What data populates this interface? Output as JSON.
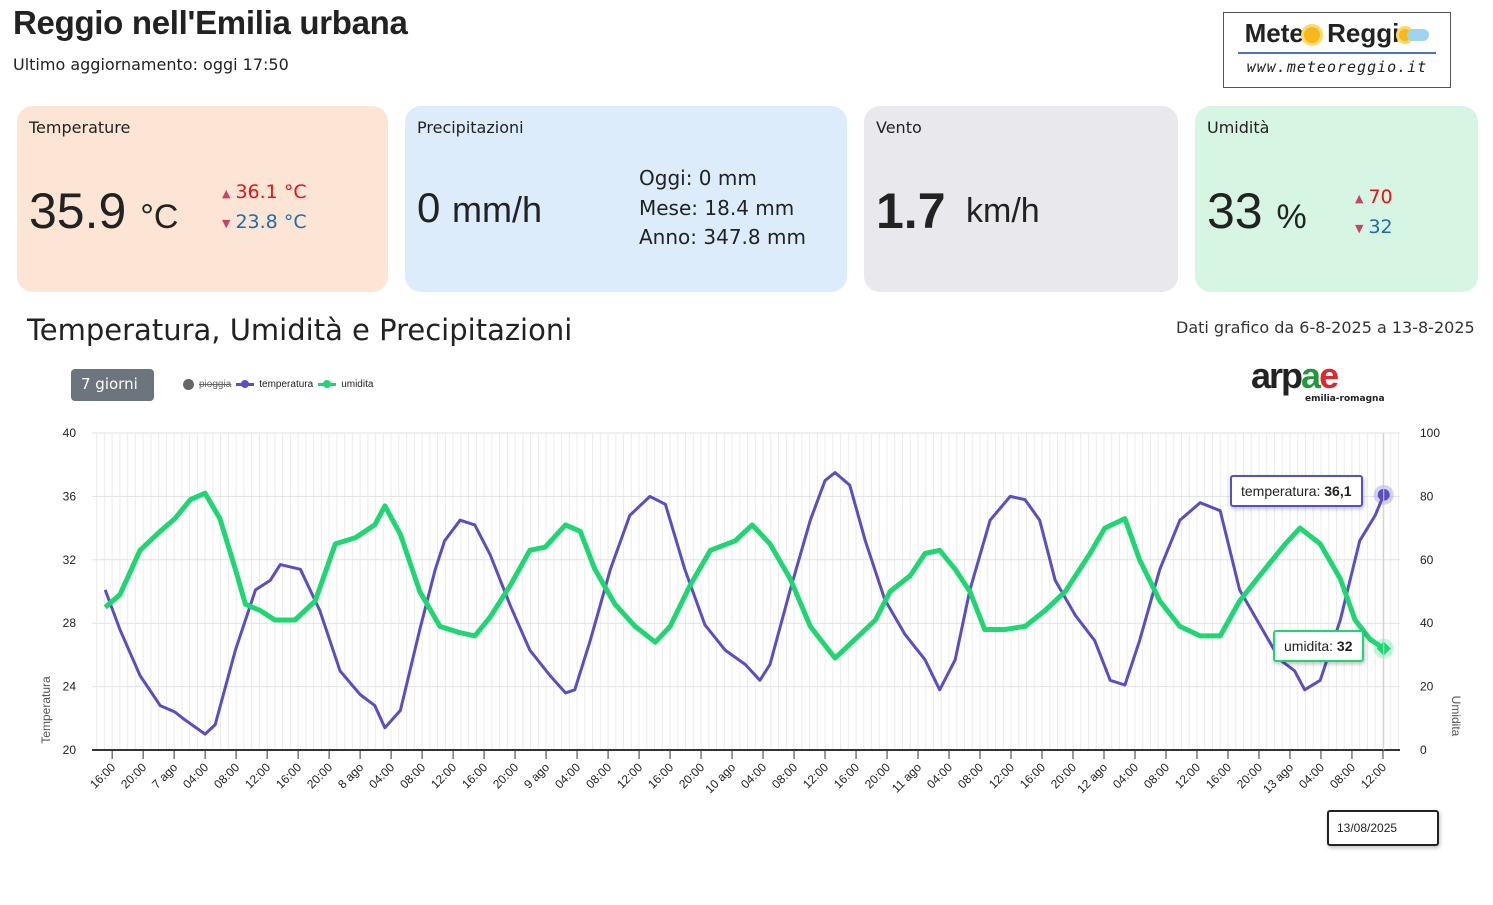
{
  "header": {
    "title": "Reggio nell'Emilia urbana",
    "updated": "Ultimo aggiornamento: oggi 17:50"
  },
  "logo": {
    "line1a": "Mete",
    "line1b": "Reggi",
    "url": "www.meteoreggio.it"
  },
  "cards": {
    "temperature": {
      "label": "Temperature",
      "value": "35.9",
      "unit": "°C",
      "max": "36.1 °C",
      "min": "23.8 °C"
    },
    "precipitation": {
      "label": "Precipitazioni",
      "value": "0",
      "unit": "mm/h",
      "today": "Oggi: 0 mm",
      "month": "Mese: 18.4 mm",
      "year": "Anno: 347.8 mm"
    },
    "wind": {
      "label": "Vento",
      "value": "1.7",
      "unit": "km/h"
    },
    "humidity": {
      "label": "Umidità",
      "value": "33",
      "unit": "%",
      "max": "70",
      "min": "32"
    }
  },
  "chart_section": {
    "title": "Temperatura, Umidità e Precipitazioni",
    "range": "Dati grafico da 6-8-2025 a 13-8-2025",
    "period_button": "7 giorni",
    "source_logo": "arpae",
    "source_sub": "emilia-romagna"
  },
  "colors": {
    "temperatura": "#5a4fc2",
    "umidita": "#1fd672",
    "pioggia": "#666666"
  },
  "chart_data": {
    "type": "line",
    "x_unit": "hours since 6 ago 16:00",
    "xlim": [
      -2.6,
      166.2
    ],
    "legend": [
      "pioggia",
      "temperatura",
      "umidita"
    ],
    "legend_position": "top-left",
    "ylabel": "Temperatura",
    "y2label": "Umidita",
    "ylim": [
      20,
      40
    ],
    "yticks": [
      "20",
      "24",
      "28",
      "32",
      "36",
      "40"
    ],
    "y2lim": [
      0,
      100
    ],
    "y2ticks": [
      "0",
      "20",
      "40",
      "60",
      "80",
      "100"
    ],
    "xticks": [
      "16:00",
      "20:00",
      "7 ago",
      "04:00",
      "08:00",
      "12:00",
      "16:00",
      "20:00",
      "8 ago",
      "04:00",
      "08:00",
      "12:00",
      "16:00",
      "20:00",
      "9 ago",
      "04:00",
      "08:00",
      "12:00",
      "16:00",
      "20:00",
      "10 ago",
      "04:00",
      "08:00",
      "12:00",
      "16:00",
      "20:00",
      "11 ago",
      "04:00",
      "08:00",
      "12:00",
      "16:00",
      "20:00",
      "12 ago",
      "04:00",
      "08:00",
      "12:00",
      "16:00",
      "20:00",
      "13 ago",
      "04:00",
      "08:00",
      "12:00"
    ],
    "series": [
      {
        "name": "temperatura",
        "axis": "left",
        "points": [
          [
            -0.9,
            30.1
          ],
          [
            1.0,
            27.6
          ],
          [
            3.6,
            24.7
          ],
          [
            6.2,
            22.8
          ],
          [
            8.1,
            22.4
          ],
          [
            9.4,
            21.9
          ],
          [
            12.0,
            21.0
          ],
          [
            13.3,
            21.6
          ],
          [
            15.9,
            26.3
          ],
          [
            18.5,
            30.1
          ],
          [
            20.4,
            30.7
          ],
          [
            21.7,
            31.7
          ],
          [
            24.3,
            31.4
          ],
          [
            26.8,
            28.8
          ],
          [
            29.4,
            25.0
          ],
          [
            32.0,
            23.5
          ],
          [
            33.9,
            22.8
          ],
          [
            35.2,
            21.4
          ],
          [
            37.2,
            22.5
          ],
          [
            39.7,
            27.6
          ],
          [
            41.7,
            31.4
          ],
          [
            42.9,
            33.2
          ],
          [
            44.9,
            34.5
          ],
          [
            46.8,
            34.2
          ],
          [
            48.8,
            32.3
          ],
          [
            51.4,
            29.1
          ],
          [
            53.9,
            26.3
          ],
          [
            56.5,
            24.7
          ],
          [
            58.5,
            23.6
          ],
          [
            59.7,
            23.8
          ],
          [
            61.7,
            26.9
          ],
          [
            64.3,
            31.4
          ],
          [
            66.8,
            34.8
          ],
          [
            69.4,
            36.0
          ],
          [
            71.4,
            35.5
          ],
          [
            73.9,
            31.4
          ],
          [
            76.5,
            27.9
          ],
          [
            79.1,
            26.3
          ],
          [
            81.7,
            25.4
          ],
          [
            83.6,
            24.4
          ],
          [
            84.9,
            25.4
          ],
          [
            87.5,
            30.1
          ],
          [
            90.1,
            34.5
          ],
          [
            92.0,
            37.0
          ],
          [
            93.3,
            37.5
          ],
          [
            95.2,
            36.7
          ],
          [
            97.2,
            33.2
          ],
          [
            99.7,
            29.5
          ],
          [
            102.3,
            27.3
          ],
          [
            104.9,
            25.7
          ],
          [
            106.8,
            23.8
          ],
          [
            108.8,
            25.7
          ],
          [
            110.7,
            30.1
          ],
          [
            113.3,
            34.5
          ],
          [
            115.9,
            36.0
          ],
          [
            117.8,
            35.8
          ],
          [
            119.7,
            34.5
          ],
          [
            121.7,
            30.7
          ],
          [
            124.3,
            28.5
          ],
          [
            126.8,
            26.9
          ],
          [
            128.8,
            24.4
          ],
          [
            130.7,
            24.1
          ],
          [
            132.6,
            26.9
          ],
          [
            135.2,
            31.4
          ],
          [
            137.8,
            34.5
          ],
          [
            140.4,
            35.6
          ],
          [
            143.0,
            35.1
          ],
          [
            145.5,
            30.1
          ],
          [
            148.1,
            27.9
          ],
          [
            150.7,
            25.7
          ],
          [
            152.6,
            25.0
          ],
          [
            153.9,
            23.8
          ],
          [
            155.9,
            24.4
          ],
          [
            158.5,
            28.2
          ],
          [
            161.0,
            33.2
          ],
          [
            163.0,
            34.8
          ],
          [
            164.1,
            36.1
          ]
        ]
      },
      {
        "name": "umidita",
        "axis": "right",
        "points": [
          [
            -0.9,
            45
          ],
          [
            1.0,
            49
          ],
          [
            3.6,
            63
          ],
          [
            6.2,
            69
          ],
          [
            8.1,
            73
          ],
          [
            10.1,
            79
          ],
          [
            12.0,
            81
          ],
          [
            13.9,
            73
          ],
          [
            15.9,
            57
          ],
          [
            17.2,
            46
          ],
          [
            19.1,
            44
          ],
          [
            21.0,
            41
          ],
          [
            23.6,
            41
          ],
          [
            26.2,
            47
          ],
          [
            28.8,
            65
          ],
          [
            31.4,
            67
          ],
          [
            33.9,
            71
          ],
          [
            35.2,
            77
          ],
          [
            37.2,
            68
          ],
          [
            39.7,
            50
          ],
          [
            42.3,
            39
          ],
          [
            44.9,
            37
          ],
          [
            46.8,
            36
          ],
          [
            48.8,
            42
          ],
          [
            51.4,
            52
          ],
          [
            53.9,
            63
          ],
          [
            55.9,
            64
          ],
          [
            58.5,
            71
          ],
          [
            60.4,
            69
          ],
          [
            62.3,
            57
          ],
          [
            64.9,
            46
          ],
          [
            67.5,
            39
          ],
          [
            70.1,
            34
          ],
          [
            72.0,
            39
          ],
          [
            74.6,
            52
          ],
          [
            77.2,
            63
          ],
          [
            80.4,
            66
          ],
          [
            82.6,
            71
          ],
          [
            84.9,
            65
          ],
          [
            87.5,
            54
          ],
          [
            90.1,
            39
          ],
          [
            92.0,
            33
          ],
          [
            93.3,
            29
          ],
          [
            95.9,
            35
          ],
          [
            98.5,
            41
          ],
          [
            100.4,
            50
          ],
          [
            103.0,
            55
          ],
          [
            104.9,
            62
          ],
          [
            106.8,
            63
          ],
          [
            108.8,
            57
          ],
          [
            110.7,
            50
          ],
          [
            112.6,
            38
          ],
          [
            115.2,
            38
          ],
          [
            117.8,
            39
          ],
          [
            120.4,
            44
          ],
          [
            123.0,
            50
          ],
          [
            126.2,
            62
          ],
          [
            128.1,
            70
          ],
          [
            130.7,
            73
          ],
          [
            132.6,
            60
          ],
          [
            135.2,
            47
          ],
          [
            137.8,
            39
          ],
          [
            140.4,
            36
          ],
          [
            143.0,
            36
          ],
          [
            145.5,
            47
          ],
          [
            148.1,
            55
          ],
          [
            151.4,
            65
          ],
          [
            153.3,
            70
          ],
          [
            155.9,
            65
          ],
          [
            158.5,
            54
          ],
          [
            160.4,
            41
          ],
          [
            162.3,
            35
          ],
          [
            164.1,
            32
          ]
        ]
      }
    ],
    "tooltips": {
      "temperatura_label": "temperatura:",
      "temperatura_value": "36,1",
      "umidita_label": "umidita:",
      "umidita_value": "32",
      "date": "13/08/2025"
    }
  }
}
